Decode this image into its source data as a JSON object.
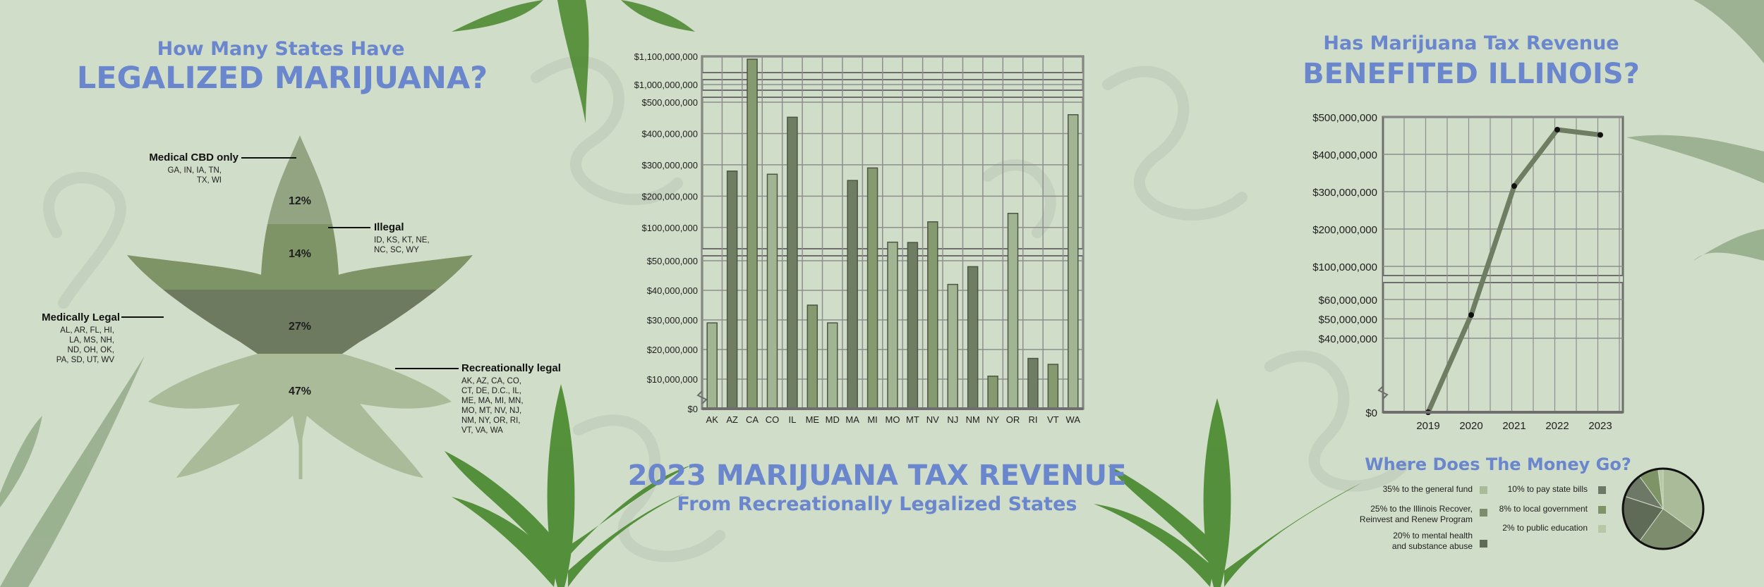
{
  "left": {
    "title_line1": "How Many States Have",
    "title_line2": "LEGALIZED MARIJUANA?",
    "categories": [
      {
        "label": "Medical CBD only",
        "states_line1": "GA, IN, IA, TN,",
        "states_line2": "TX, WI",
        "states_line3": "",
        "states_line4": "",
        "states_line5": "",
        "pct": "12%",
        "color": "#93a483"
      },
      {
        "label": "Illegal",
        "states_line1": "ID, KS, KT, NE,",
        "states_line2": "NC, SC, WY",
        "states_line3": "",
        "states_line4": "",
        "states_line5": "",
        "pct": "14%",
        "color": "#7e9466"
      },
      {
        "label": "Medically Legal",
        "states_line1": "AL, AR, FL, HI,",
        "states_line2": "LA, MS, NH,",
        "states_line3": "ND, OH, OK,",
        "states_line4": "PA, SD, UT, WV",
        "states_line5": "",
        "pct": "27%",
        "color": "#6d7a5f"
      },
      {
        "label": "Recreationally legal",
        "states_line1": "AK, AZ, CA, CO,",
        "states_line2": "CT, DE, D.C., IL,",
        "states_line3": "ME, MA, MI, MN,",
        "states_line4": "MO, MT, NV, NJ,",
        "states_line5": "NM, NY, OR, RI,",
        "states_line6": "VT, VA, WA",
        "pct": "47%",
        "color": "#a9bb98"
      }
    ]
  },
  "middle": {
    "title_line1": "2023 MARIJUANA TAX REVENUE",
    "title_line2": "From Recreationally Legalized States"
  },
  "right": {
    "title_line1": "Has Marijuana Tax Revenue",
    "title_line2": "BENEFITED ILLINOIS?",
    "money_title": "Where Does The Money Go?"
  },
  "chart_data": [
    {
      "type": "pie",
      "title": "How Many States Have LEGALIZED MARIJUANA?",
      "labels": [
        "Medical CBD only",
        "Illegal",
        "Medically Legal",
        "Recreationally legal"
      ],
      "values": [
        12,
        14,
        27,
        47
      ]
    },
    {
      "type": "bar",
      "title": "2023 MARIJUANA TAX REVENUE",
      "subtitle": "From Recreationally Legalized States",
      "categories": [
        "AK",
        "AZ",
        "CA",
        "CO",
        "IL",
        "ME",
        "MD",
        "MA",
        "MI",
        "MO",
        "MT",
        "NV",
        "NJ",
        "NM",
        "NY",
        "OR",
        "RI",
        "VT",
        "WA"
      ],
      "values": [
        29000000,
        280000000,
        1090000000,
        270000000,
        452000000,
        35000000,
        29000000,
        250000000,
        290000000,
        53000000,
        52000000,
        118000000,
        42000000,
        48000000,
        11000000,
        145000000,
        17000000,
        15000000,
        460000000
      ],
      "bar_colors": [
        "#a2b592",
        "#6f7e62",
        "#869a6f",
        "#a2b592",
        "#6f7e62",
        "#869a6f",
        "#a2b592",
        "#6f7e62",
        "#869a6f",
        "#a2b592",
        "#6f7e62",
        "#869a6f",
        "#a2b592",
        "#6f7e62",
        "#869a6f",
        "#a2b592",
        "#6f7e62",
        "#869a6f",
        "#a2b592"
      ],
      "yticks": [
        "$0",
        "$10,000,000",
        "$20,000,000",
        "$30,000,000",
        "$40,000,000",
        "$50,000,000",
        "$100,000,000",
        "$200,000,000",
        "$300,000,000",
        "$400,000,000",
        "$500,000,000",
        "$1,000,000,000",
        "$1,100,000,000"
      ],
      "ylim": [
        0,
        1100000000
      ],
      "axis_breaks": true,
      "grid": true
    },
    {
      "type": "line",
      "title": "Has Marijuana Tax Revenue BENEFITED ILLINOIS?",
      "x": [
        "2019",
        "2020",
        "2021",
        "2022",
        "2023"
      ],
      "values": [
        0,
        52000000,
        315000000,
        466000000,
        452000000
      ],
      "yticks": [
        "$0",
        "$40,000,000",
        "$50,000,000",
        "$60,000,000",
        "$100,000,000",
        "$200,000,000",
        "$300,000,000",
        "$400,000,000",
        "$500,000,000"
      ],
      "ylim": [
        0,
        500000000
      ],
      "axis_breaks": true,
      "grid": true
    },
    {
      "type": "pie",
      "title": "Where Does The Money Go?",
      "labels": [
        "35% to the general fund",
        "25% to the Illinois Recover, Reinvest and Renew Program",
        "20% to mental health and substance abuse",
        "10% to pay state bills",
        "8% to local government",
        "2% to public education"
      ],
      "values": [
        35,
        25,
        20,
        10,
        8,
        2
      ],
      "colors": [
        "#a9bb98",
        "#7d8c6d",
        "#5f6b56",
        "#6d7866",
        "#7e9466",
        "#b6c8a5"
      ],
      "legend": "left"
    }
  ]
}
